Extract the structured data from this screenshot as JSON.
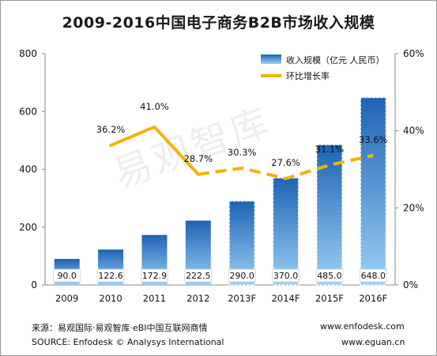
{
  "chart_data": {
    "type": "bar",
    "title": "2009-2016中国电子商务B2B市场收入规模",
    "categories": [
      "2009",
      "2010",
      "2011",
      "2012",
      "2013F",
      "2014F",
      "2015F",
      "2016F"
    ],
    "series": [
      {
        "name": "收入规模（亿元 人民币）",
        "type": "bar",
        "axis": "left",
        "color": "#2b78c8",
        "values": [
          90.0,
          122.6,
          172.9,
          222.5,
          290.0,
          370.0,
          485.0,
          648.0
        ],
        "labels": [
          "90.0",
          "122.6",
          "172.9",
          "222.5",
          "290.0",
          "370.0",
          "485.0",
          "648.0"
        ]
      },
      {
        "name": "环比增长率",
        "type": "line",
        "axis": "right",
        "color": "#f2b300",
        "values": [
          null,
          36.2,
          41.0,
          28.7,
          30.3,
          27.6,
          31.1,
          33.6
        ],
        "labels": [
          "",
          "36.2%",
          "41.0%",
          "28.7%",
          "30.3%",
          "27.6%",
          "31.1%",
          "33.6%"
        ]
      }
    ],
    "ylim_left": [
      0,
      800
    ],
    "yticks_left": [
      "0",
      "200",
      "400",
      "600",
      "800"
    ],
    "ylim_right": [
      0,
      60
    ],
    "yticks_right": [
      "0%",
      "20%",
      "40%",
      "60%"
    ],
    "forecast_from_index": 4,
    "legend": "top-right",
    "grid": false
  },
  "watermark": "易观智库",
  "footer": {
    "source_cn": "来源：易观国际·易观智库·eBI中国互联网商情",
    "source_en": "SOURCE: Enfodesk © Analysys International",
    "site1": "www.enfodesk.com",
    "site2": "www.eguan.cn"
  }
}
